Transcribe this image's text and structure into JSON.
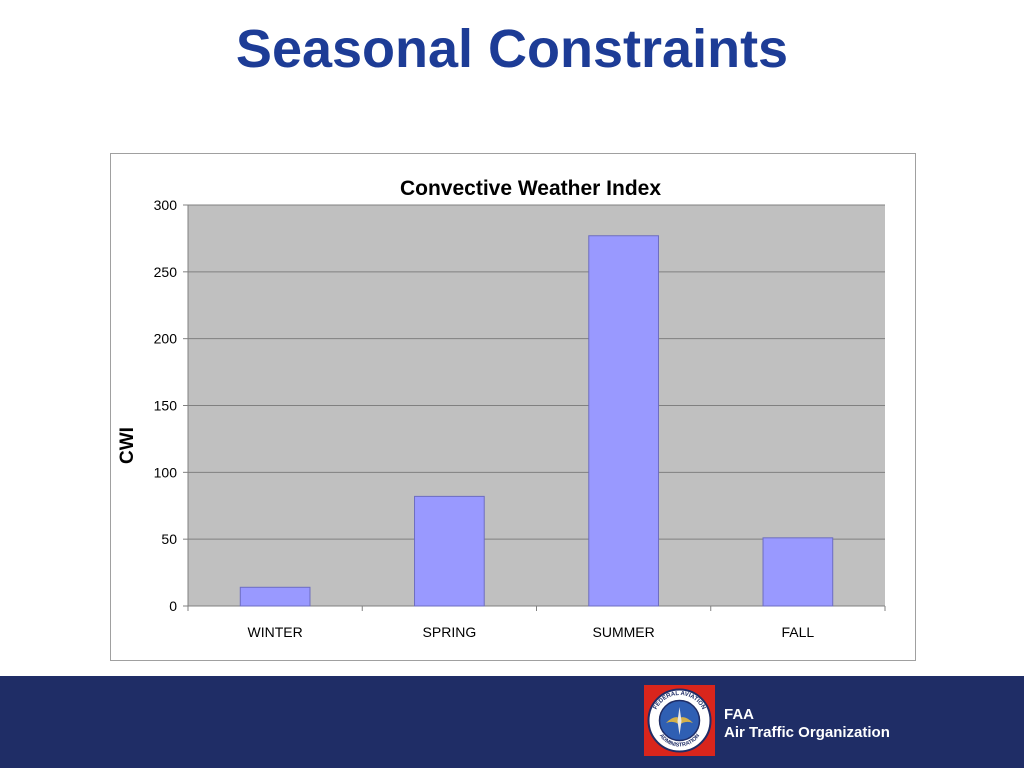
{
  "slide": {
    "title": "Seasonal Constraints"
  },
  "footer": {
    "org_line1": "FAA",
    "org_line2": "Air Traffic Organization",
    "seal_text_top": "FEDERAL AVIATION",
    "seal_text_bottom": "ADMINISTRATION"
  },
  "colors": {
    "title": "#1d3c96",
    "bar_fill": "#9999ff",
    "plot_bg": "#c0c0c0",
    "footer_bg": "#1f2d66",
    "seal_red": "#d9251c"
  },
  "chart_data": {
    "type": "bar",
    "title": "Convective Weather Index",
    "xlabel": "",
    "ylabel": "CWI",
    "categories": [
      "WINTER",
      "SPRING",
      "SUMMER",
      "FALL"
    ],
    "values": [
      14,
      82,
      277,
      51
    ],
    "ylim": [
      0,
      300
    ],
    "yticks": [
      0,
      50,
      100,
      150,
      200,
      250,
      300
    ],
    "grid": true,
    "legend": "none"
  }
}
